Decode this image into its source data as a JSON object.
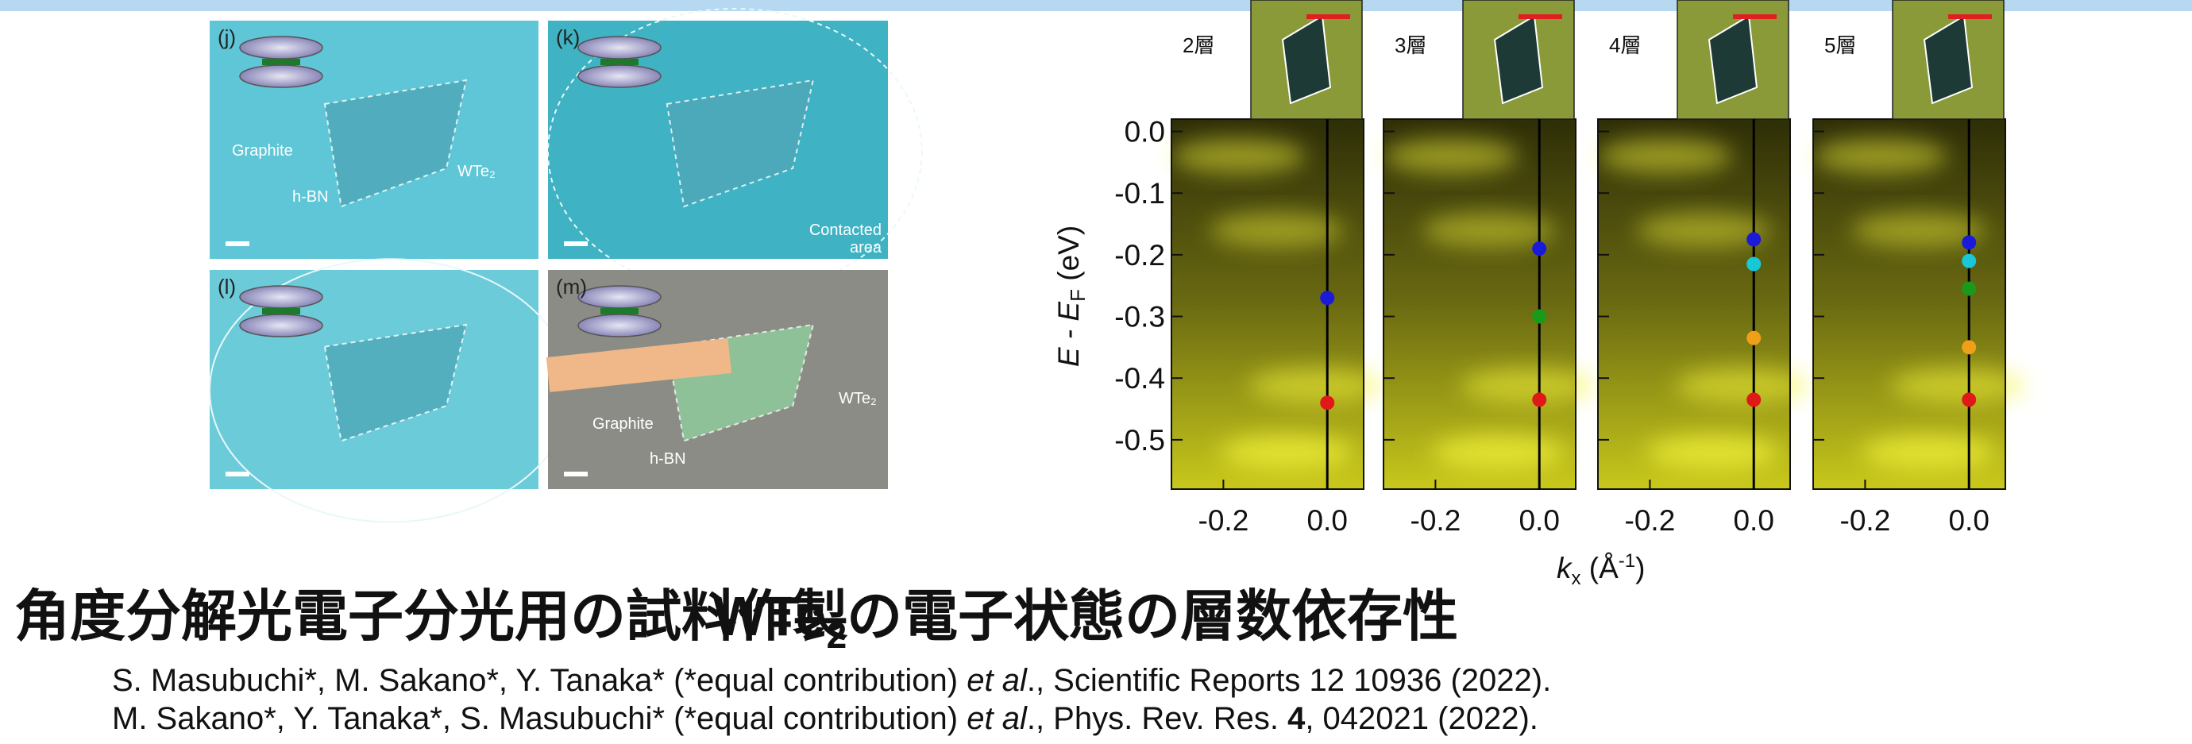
{
  "left_figure": {
    "panels": [
      {
        "label": "(j)",
        "notes": [
          "Graphite",
          "h-BN",
          "WTe₂"
        ]
      },
      {
        "label": "(k)",
        "notes": [
          "Contacted",
          "area"
        ]
      },
      {
        "label": "(l)"
      },
      {
        "label": "(m)",
        "notes": [
          "Graphite",
          "h-BN",
          "WTe₂"
        ]
      }
    ]
  },
  "chart_data": {
    "type": "scatter",
    "y_label": {
      "main": "E - E",
      "sub": "F",
      "unit": " (eV)"
    },
    "x_label": {
      "main": "k",
      "sub": "x",
      "unit": " (Å",
      "sup": "-1",
      "close": ")"
    },
    "xlim": [
      -0.3,
      0.07
    ],
    "xticks": [
      -0.2,
      {
        "value": 0,
        "label": "0.0"
      }
    ],
    "ylim": [
      -0.58,
      0.02
    ],
    "yticks": [
      {
        "value": 0,
        "label": "0.0"
      },
      -0.1,
      -0.2,
      -0.3,
      -0.4,
      -0.5
    ],
    "panels": [
      {
        "name": "2層",
        "points": [
          {
            "value": -0.27,
            "color": "#1a1ad8"
          },
          {
            "value": -0.44,
            "color": "#e01818"
          }
        ]
      },
      {
        "name": "3層",
        "points": [
          {
            "value": -0.19,
            "color": "#1a1ad8"
          },
          {
            "value": -0.3,
            "color": "#1a9a1a"
          },
          {
            "value": -0.435,
            "color": "#e01818"
          }
        ]
      },
      {
        "name": "4層",
        "points": [
          {
            "value": -0.175,
            "color": "#1a1ad8"
          },
          {
            "value": -0.215,
            "color": "#18c8d8"
          },
          {
            "value": -0.335,
            "color": "#f0a018"
          },
          {
            "value": -0.435,
            "color": "#e01818"
          }
        ]
      },
      {
        "name": "5層",
        "points": [
          {
            "value": -0.18,
            "color": "#1a1ad8"
          },
          {
            "value": -0.21,
            "color": "#18c8d8"
          },
          {
            "value": -0.255,
            "color": "#1a9a1a"
          },
          {
            "value": -0.35,
            "color": "#f0a018"
          },
          {
            "value": -0.435,
            "color": "#e01818"
          }
        ]
      }
    ]
  },
  "headings": {
    "left": "角度分解光電子分光用の試料作製",
    "right": {
      "before": "WTe",
      "sub": "2",
      "after": "の電子状態の層数依存性"
    }
  },
  "references": [
    [
      {
        "text": "S. Masubuchi*, M. Sakano*, Y. Tanaka* (*equal contribution) "
      },
      {
        "text": "et al",
        "style": "italic"
      },
      {
        "text": "., Scientific Reports 12 10936 (2022)."
      }
    ],
    [
      {
        "text": "M. Sakano*, Y. Tanaka*, S. Masubuchi* (*equal contribution) "
      },
      {
        "text": "et al",
        "style": "italic"
      },
      {
        "text": "., Phys. Rev. Res. "
      },
      {
        "text": "4",
        "style": "bold"
      },
      {
        "text": ", 042021 (2022)."
      }
    ]
  ]
}
